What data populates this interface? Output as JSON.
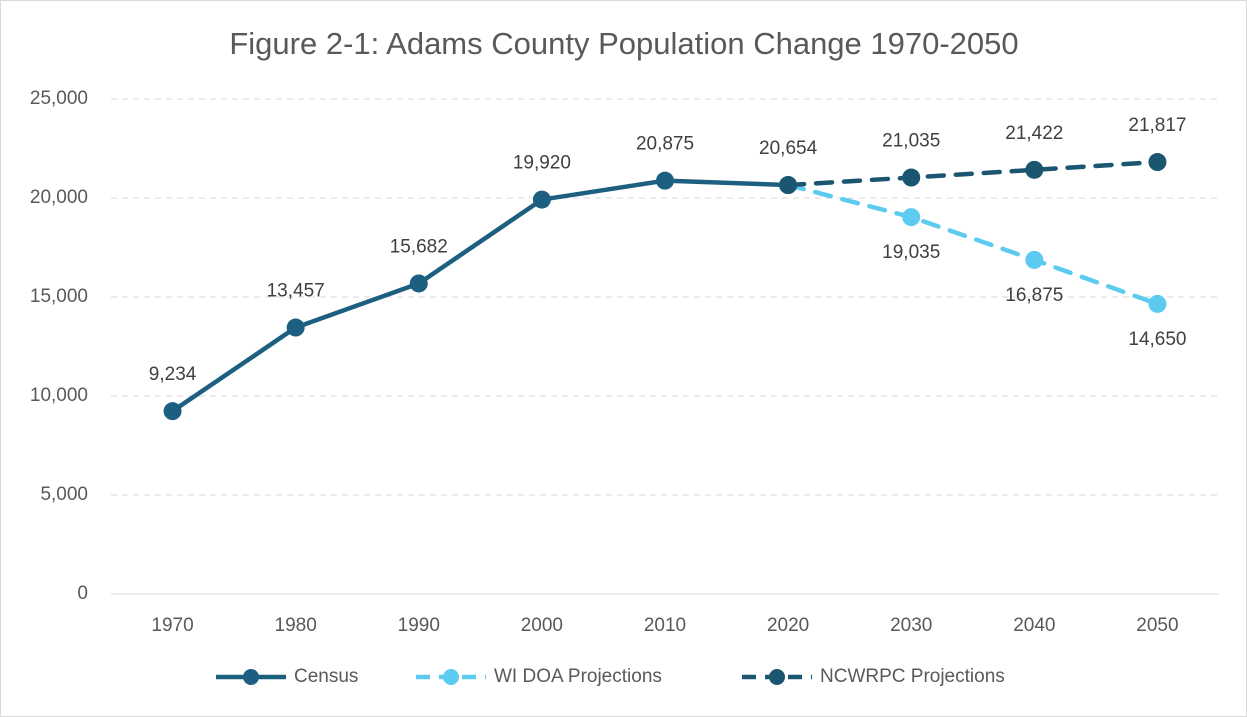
{
  "chart_data": {
    "type": "line",
    "title": "Figure 2-1: Adams County Population Change 1970-2050",
    "categories": [
      "1970",
      "1980",
      "1990",
      "2000",
      "2010",
      "2020",
      "2030",
      "2040",
      "2050"
    ],
    "series": [
      {
        "name": "Census",
        "color": "#1d5f80",
        "line_style": "solid",
        "label_position": "above",
        "values": [
          9234,
          13457,
          15682,
          19920,
          20875,
          20654,
          null,
          null,
          null
        ],
        "value_labels": [
          "9,234",
          "13,457",
          "15,682",
          "19,920",
          "20,875",
          "20,654",
          null,
          null,
          null
        ]
      },
      {
        "name": "WI DOA Projections",
        "color": "#5dcbf0",
        "line_style": "dashed",
        "label_position": "below",
        "values": [
          null,
          null,
          null,
          null,
          null,
          20654,
          19035,
          16875,
          14650
        ],
        "value_labels": [
          null,
          null,
          null,
          null,
          null,
          null,
          "19,035",
          "16,875",
          "14,650"
        ]
      },
      {
        "name": "NCWRPC Projections",
        "color": "#1a5670",
        "line_style": "dashed",
        "label_position": "above",
        "values": [
          null,
          null,
          null,
          null,
          null,
          20654,
          21035,
          21422,
          21817
        ],
        "value_labels": [
          null,
          null,
          null,
          null,
          null,
          null,
          "21,035",
          "21,422",
          "21,817"
        ]
      }
    ],
    "ylim": [
      0,
      25000
    ],
    "yticks": [
      0,
      {
        "value": 5000,
        "label": "5,000"
      },
      {
        "value": 10000,
        "label": "10,000"
      },
      {
        "value": 15000,
        "label": "15,000"
      },
      {
        "value": 20000,
        "label": "20,000"
      },
      {
        "value": 25000,
        "label": "25,000"
      }
    ],
    "grid": true,
    "legend": "bottom"
  }
}
